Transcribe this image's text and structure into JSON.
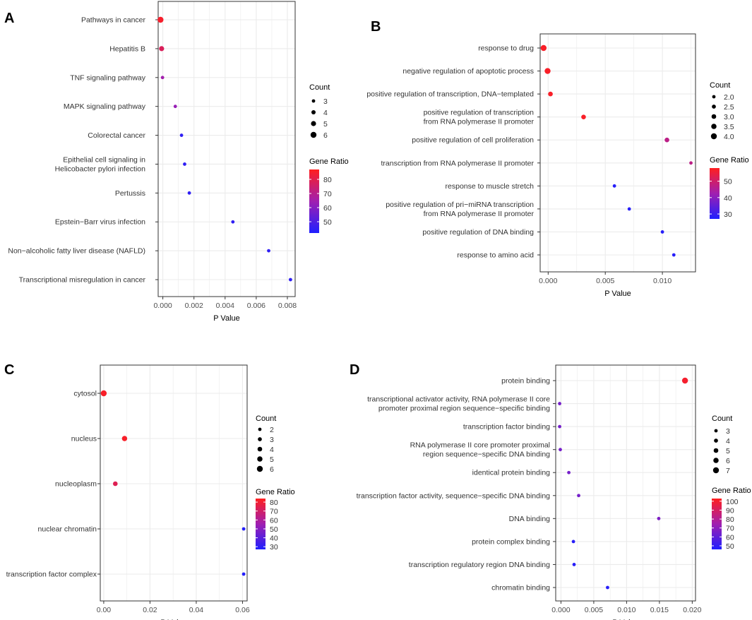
{
  "chart_data": [
    {
      "panel": "A",
      "type": "scatter",
      "xlabel": "P Value",
      "xlim": [
        -0.0003,
        0.0085
      ],
      "xticks": [
        0.0,
        0.002,
        0.004,
        0.006,
        0.008
      ],
      "xtick_labels": [
        "0.000",
        "0.002",
        "0.004",
        "0.006",
        "0.008"
      ],
      "categories": [
        {
          "label": [
            "Pathways in cancer"
          ],
          "p": -0.00015,
          "count": 6,
          "ratio": 85
        },
        {
          "label": [
            "Hepatitis B"
          ],
          "p": -8e-05,
          "count": 5,
          "ratio": 78
        },
        {
          "label": [
            "TNF signaling pathway"
          ],
          "p": -2e-05,
          "count": 3,
          "ratio": 65
        },
        {
          "label": [
            "MAPK signaling pathway"
          ],
          "p": 0.0008,
          "count": 3,
          "ratio": 63
        },
        {
          "label": [
            "Colorectal cancer"
          ],
          "p": 0.0012,
          "count": 3,
          "ratio": 45
        },
        {
          "label": [
            "Epithelial cell signaling in",
            "Helicobacter pylori infection"
          ],
          "p": 0.0014,
          "count": 3,
          "ratio": 45
        },
        {
          "label": [
            "Pertussis"
          ],
          "p": 0.0017,
          "count": 3,
          "ratio": 45
        },
        {
          "label": [
            "Epstein−Barr virus infection"
          ],
          "p": 0.0045,
          "count": 3,
          "ratio": 45
        },
        {
          "label": [
            "Non−alcoholic fatty liver disease (NAFLD)"
          ],
          "p": 0.0068,
          "count": 3,
          "ratio": 45
        },
        {
          "label": [
            "Transcriptional misregulation in cancer"
          ],
          "p": 0.0082,
          "count": 3,
          "ratio": 45
        }
      ],
      "legend": {
        "count_title": "Count",
        "count_values": [
          "3",
          "4",
          "5",
          "6"
        ],
        "ratio_title": "Gene Ratio",
        "ratio_range": [
          42,
          87
        ],
        "ratio_ticks": [
          50,
          60,
          70,
          80
        ],
        "ratio_tick_labels": [
          "50",
          "60",
          "70",
          "80"
        ]
      }
    },
    {
      "panel": "B",
      "type": "scatter",
      "xlabel": "P Value",
      "xlim": [
        -0.0007,
        0.0129
      ],
      "xticks": [
        0.0,
        0.005,
        0.01
      ],
      "xtick_labels": [
        "0.000",
        "0.005",
        "0.010"
      ],
      "categories": [
        {
          "label": [
            "response to drug"
          ],
          "p": -0.0004,
          "count": 4,
          "ratio": 57
        },
        {
          "label": [
            "negative regulation of apoptotic process"
          ],
          "p": -5e-05,
          "count": 4,
          "ratio": 57
        },
        {
          "label": [
            "positive regulation of transcription, DNA−templated"
          ],
          "p": 0.0002,
          "count": 3,
          "ratio": 57
        },
        {
          "label": [
            "positive regulation of transcription",
            "from RNA polymerase II promoter"
          ],
          "p": 0.0031,
          "count": 3,
          "ratio": 57
        },
        {
          "label": [
            "positive regulation of cell proliferation"
          ],
          "p": 0.0104,
          "count": 3,
          "ratio": 47
        },
        {
          "label": [
            "transcription from RNA polymerase II promoter"
          ],
          "p": 0.0125,
          "count": 2,
          "ratio": 47
        },
        {
          "label": [
            "response to muscle stretch"
          ],
          "p": 0.0058,
          "count": 2,
          "ratio": 28
        },
        {
          "label": [
            "positive regulation of pri−miRNA transcription",
            "from RNA polymerase II promoter"
          ],
          "p": 0.0071,
          "count": 2,
          "ratio": 28
        },
        {
          "label": [
            "positive regulation of DNA binding"
          ],
          "p": 0.01,
          "count": 2,
          "ratio": 28
        },
        {
          "label": [
            "response to amino acid"
          ],
          "p": 0.011,
          "count": 2,
          "ratio": 28
        }
      ],
      "legend": {
        "count_title": "Count",
        "count_values": [
          "2.0",
          "2.5",
          "3.0",
          "3.5",
          "4.0"
        ],
        "ratio_title": "Gene Ratio",
        "ratio_range": [
          27,
          58
        ],
        "ratio_ticks": [
          30,
          40,
          50
        ],
        "ratio_tick_labels": [
          "30",
          "40",
          "50"
        ]
      }
    },
    {
      "panel": "C",
      "type": "scatter",
      "xlabel": "P Value",
      "xlim": [
        -0.0015,
        0.062
      ],
      "xticks": [
        0.0,
        0.02,
        0.04,
        0.06
      ],
      "xtick_labels": [
        "0.00",
        "0.02",
        "0.04",
        "0.06"
      ],
      "categories": [
        {
          "label": [
            "cytosol"
          ],
          "p": 0.0,
          "count": 6,
          "ratio": 82
        },
        {
          "label": [
            "nucleus"
          ],
          "p": 0.009,
          "count": 5,
          "ratio": 82
        },
        {
          "label": [
            "nucleoplasm"
          ],
          "p": 0.005,
          "count": 4,
          "ratio": 74
        },
        {
          "label": [
            "nuclear chromatin"
          ],
          "p": 0.0605,
          "count": 2,
          "ratio": 28
        },
        {
          "label": [
            "transcription factor complex"
          ],
          "p": 0.0605,
          "count": 2,
          "ratio": 28
        }
      ],
      "legend": {
        "count_title": "Count",
        "count_values": [
          "2",
          "3",
          "4",
          "5",
          "6"
        ],
        "ratio_title": "Gene Ratio",
        "ratio_range": [
          27,
          84
        ],
        "ratio_ticks": [
          30,
          40,
          50,
          60,
          70,
          80
        ],
        "ratio_tick_labels": [
          "30",
          "40",
          "50",
          "60",
          "70",
          "80"
        ]
      }
    },
    {
      "panel": "D",
      "type": "scatter",
      "xlabel": "P Value",
      "xlim": [
        -0.0008,
        0.0205
      ],
      "xticks": [
        0.0,
        0.005,
        0.01,
        0.015,
        0.02
      ],
      "xtick_labels": [
        "0.000",
        "0.005",
        "0.010",
        "0.015",
        "0.020"
      ],
      "categories": [
        {
          "label": [
            "protein binding"
          ],
          "p": 0.0189,
          "count": 7,
          "ratio": 100
        },
        {
          "label": [
            "transcriptional activator activity, RNA polymerase II core",
            "promoter proximal region sequence−specific binding"
          ],
          "p": -0.0002,
          "count": 3,
          "ratio": 65
        },
        {
          "label": [
            "transcription factor binding"
          ],
          "p": -0.0002,
          "count": 3,
          "ratio": 65
        },
        {
          "label": [
            "RNA polymerase II core promoter proximal",
            "region sequence−specific DNA binding"
          ],
          "p": -0.0001,
          "count": 3,
          "ratio": 65
        },
        {
          "label": [
            "identical protein binding"
          ],
          "p": 0.0012,
          "count": 3,
          "ratio": 65
        },
        {
          "label": [
            "transcription factor activity, sequence−specific DNA binding"
          ],
          "p": 0.0027,
          "count": 3,
          "ratio": 65
        },
        {
          "label": [
            "DNA binding"
          ],
          "p": 0.0149,
          "count": 3,
          "ratio": 67
        },
        {
          "label": [
            "protein complex binding"
          ],
          "p": 0.0019,
          "count": 3,
          "ratio": 48
        },
        {
          "label": [
            "transcription regulatory region DNA binding"
          ],
          "p": 0.002,
          "count": 3,
          "ratio": 48
        },
        {
          "label": [
            "chromatin binding"
          ],
          "p": 0.0071,
          "count": 3,
          "ratio": 48
        }
      ],
      "legend": {
        "count_title": "Count",
        "count_values": [
          "3",
          "4",
          "5",
          "6",
          "7"
        ],
        "ratio_title": "Gene Ratio",
        "ratio_range": [
          46,
          103
        ],
        "ratio_ticks": [
          50,
          60,
          70,
          80,
          90,
          100
        ],
        "ratio_tick_labels": [
          "50",
          "60",
          "70",
          "80",
          "90",
          "100"
        ]
      }
    }
  ]
}
